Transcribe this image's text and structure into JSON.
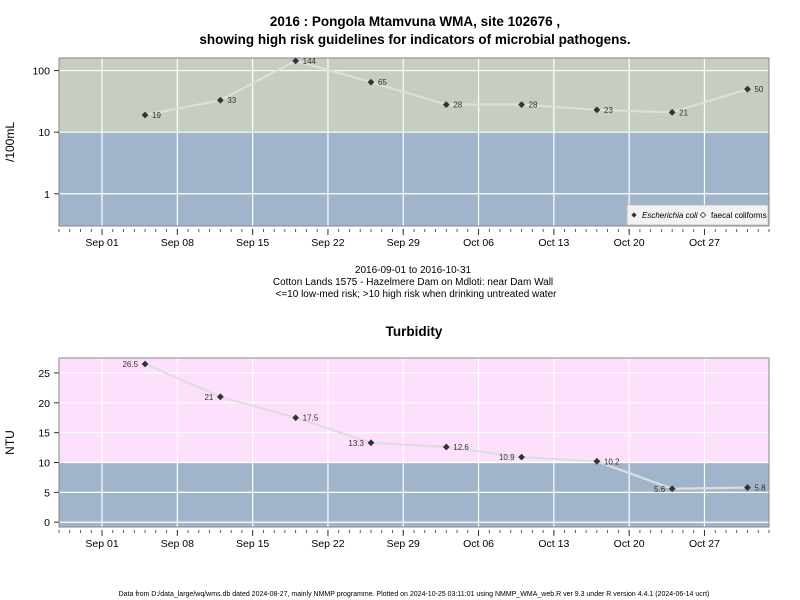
{
  "figure": {
    "title_line1": "2016 : Pongola Mtamvuna WMA, site 102676 ,",
    "title_line2": "showing high risk guidelines for indicators of microbial pathogens.",
    "date_range": "2016-09-01 to 2016-10-31",
    "site_name": "Cotton Lands 1575 - Hazelmere Dam on Mdloti: near Dam Wall",
    "risk_note": "<=10 low-med risk; >10 high risk when drinking untreated water",
    "footer": "Data from D:/data_large/wq/wms.db dated 2024-08-27, mainly NMMP programme. Plotted on 2024-10-25 03:11:01 using NMMP_WMA_web.R ver 9.3 under R version 4.4.1 (2024-06-14 ucrt)"
  },
  "colors": {
    "high_risk_band": "#c5cec0",
    "low_risk_band_top": "#a0b4cb",
    "turbidity_high_band": "#fce0fc",
    "low_risk_band_bottom": "#a0b4cb",
    "line": "#dedede",
    "marker": "#333333"
  },
  "chart_data": [
    {
      "type": "line",
      "title": "",
      "xlabel": "",
      "ylabel": "/100mL",
      "y_scale": "log",
      "ylim": [
        0.3,
        160
      ],
      "yticks": [
        1,
        10,
        100
      ],
      "ytick_labels": [
        "1",
        "10",
        "100"
      ],
      "xlim": [
        "2016-08-28",
        "2016-11-02"
      ],
      "xticks": [
        "2016-09-01",
        "2016-09-08",
        "2016-09-15",
        "2016-09-22",
        "2016-09-29",
        "2016-10-06",
        "2016-10-13",
        "2016-10-20",
        "2016-10-27"
      ],
      "xtick_labels": [
        "Sep 01",
        "Sep 08",
        "Sep 15",
        "Sep 22",
        "Sep 29",
        "Oct 06",
        "Oct 13",
        "Oct 20",
        "Oct 27"
      ],
      "threshold": 10,
      "grid": true,
      "legend_position": "bottom-right",
      "series": [
        {
          "name": "Escherichia coli",
          "marker": "filled-diamond",
          "x": [
            "2016-09-05",
            "2016-09-12",
            "2016-09-19",
            "2016-09-26",
            "2016-10-03",
            "2016-10-10",
            "2016-10-17",
            "2016-10-24",
            "2016-10-31"
          ],
          "values": [
            19,
            33,
            144,
            65,
            28,
            28,
            23,
            21,
            50
          ],
          "labels": [
            "19",
            "33",
            "144",
            "65",
            "28",
            "28",
            "23",
            "21",
            "50"
          ]
        },
        {
          "name": "faecal coliforms",
          "marker": "open-diamond",
          "x": [],
          "values": []
        }
      ]
    },
    {
      "type": "line",
      "title": "Turbidity",
      "xlabel": "",
      "ylabel": "NTU",
      "y_scale": "linear",
      "ylim": [
        -0.8,
        27.5
      ],
      "yticks": [
        0,
        5,
        10,
        15,
        20,
        25
      ],
      "ytick_labels": [
        "0",
        "5",
        "10",
        "15",
        "20",
        "25"
      ],
      "xlim": [
        "2016-08-28",
        "2016-11-02"
      ],
      "xticks": [
        "2016-09-01",
        "2016-09-08",
        "2016-09-15",
        "2016-09-22",
        "2016-09-29",
        "2016-10-06",
        "2016-10-13",
        "2016-10-20",
        "2016-10-27"
      ],
      "xtick_labels": [
        "Sep 01",
        "Sep 08",
        "Sep 15",
        "Sep 22",
        "Sep 29",
        "Oct 06",
        "Oct 13",
        "Oct 20",
        "Oct 27"
      ],
      "threshold": 10,
      "grid": true,
      "series": [
        {
          "name": "",
          "marker": "filled-diamond",
          "x": [
            "2016-09-05",
            "2016-09-12",
            "2016-09-19",
            "2016-09-26",
            "2016-10-03",
            "2016-10-10",
            "2016-10-17",
            "2016-10-24",
            "2016-10-31"
          ],
          "values": [
            26.5,
            21,
            17.5,
            13.3,
            12.6,
            10.9,
            10.2,
            5.6,
            5.8
          ],
          "labels": [
            "26.5",
            "21",
            "17.5",
            "13.3",
            "12.6",
            "10.9",
            "10.2",
            "5.6",
            "5.8"
          ],
          "label_side": [
            "left",
            "left",
            "right",
            "left",
            "right",
            "left",
            "right",
            "left",
            "right"
          ]
        }
      ]
    }
  ]
}
